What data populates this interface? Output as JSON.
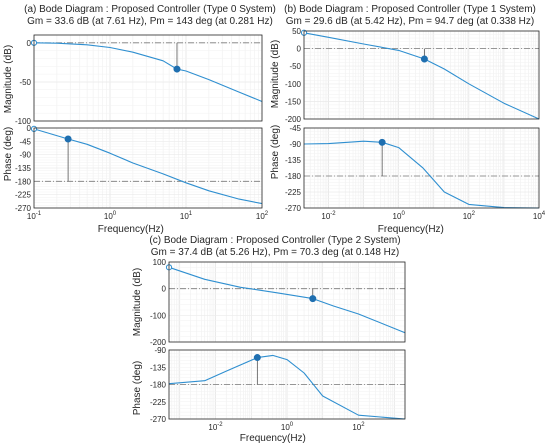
{
  "chart_data": [
    {
      "type": "line",
      "title": "(a) Bode Diagram : Proposed Controller (Type 0 System)",
      "subtitle": "Gm  = 33.6 dB (at 7.61 Hz), Pm = 143 deg (at 0.281 Hz)",
      "xlabel": "Frequency",
      "xunit": "(Hz)",
      "xscale": "log",
      "xlim": [
        0.1,
        100
      ],
      "xticks": [
        "10^-1",
        "10^0",
        "10^1",
        "10^2"
      ],
      "grid": true,
      "magnitude": {
        "ylabel": "Magnitude (dB)",
        "ylim": [
          -100,
          10
        ],
        "yticks": [
          "0",
          "-50",
          "-100"
        ],
        "x": [
          0.1,
          0.2,
          0.5,
          1,
          2,
          5,
          7.61,
          10,
          20,
          50,
          100
        ],
        "y": [
          0,
          -0.5,
          -2.5,
          -6,
          -12,
          -23,
          -33.6,
          -36,
          -47,
          -63,
          -75
        ],
        "marker_x": 7.61,
        "marker_y": -33.6,
        "open_marker_x": 0.1,
        "open_marker_y": 0,
        "ref_y": 0
      },
      "phase": {
        "ylabel": "Phase (deg)",
        "ylim": [
          -270,
          0
        ],
        "yticks": [
          "0",
          "-45",
          "-90",
          "-135",
          "-180",
          "-225",
          "-270"
        ],
        "x": [
          0.1,
          0.281,
          0.5,
          1,
          2,
          5,
          10,
          20,
          50,
          100
        ],
        "y": [
          -3,
          -37,
          -55,
          -85,
          -118,
          -155,
          -185,
          -212,
          -240,
          -255
        ],
        "marker_x": 0.281,
        "marker_y": -37,
        "open_marker_x": 0.1,
        "open_marker_y": -3,
        "ref_y": -180
      }
    },
    {
      "type": "line",
      "title": "(b) Bode Diagram : Proposed Controller (Type 1 System)",
      "subtitle": "Gm = 29.6 dB (at 5.42 Hz), Pm = 94.7 deg (at 0.338 Hz)",
      "xlabel": "Frequency",
      "xunit": "(Hz)",
      "xscale": "log",
      "xlim": [
        0.002,
        10000
      ],
      "xticks": [
        "10^-2",
        "10^0",
        "10^2",
        "10^4"
      ],
      "grid": true,
      "magnitude": {
        "ylabel": "Magnitude (dB)",
        "ylim": [
          -200,
          50
        ],
        "yticks": [
          "50",
          "0",
          "-50",
          "-100",
          "-150",
          "-200"
        ],
        "x": [
          0.002,
          0.01,
          0.1,
          1,
          5.42,
          20,
          100,
          1000,
          10000
        ],
        "y": [
          45,
          32,
          13,
          -5,
          -29.6,
          -58,
          -100,
          -155,
          -200
        ],
        "marker_x": 5.42,
        "marker_y": -29.6,
        "open_marker_x": 0.002,
        "open_marker_y": 45,
        "ref_y": 0
      },
      "phase": {
        "ylabel": "Phase (deg)",
        "ylim": [
          -270,
          -45
        ],
        "yticks": [
          "-45",
          "-90",
          "-135",
          "-180",
          "-225",
          "-270"
        ],
        "x": [
          0.002,
          0.01,
          0.05,
          0.1,
          0.338,
          1,
          5,
          20,
          100,
          1000,
          10000
        ],
        "y": [
          -90,
          -89,
          -84,
          -82,
          -85.3,
          -100,
          -158,
          -225,
          -260,
          -269,
          -270
        ],
        "marker_x": 0.338,
        "marker_y": -85.3,
        "ref_y": -180
      }
    },
    {
      "type": "line",
      "title": "(c) Bode Diagram : Proposed Controller (Type 2 System)",
      "subtitle": "Gm = 37.4 dB (at 5.26 Hz), Pm = 70.3 deg (at 0.148 Hz)",
      "xlabel": "Frequency",
      "xunit": "(Hz)",
      "xscale": "log",
      "xlim": [
        0.0005,
        2000
      ],
      "xticks": [
        "10^-2",
        "10^0",
        "10^2"
      ],
      "grid": true,
      "magnitude": {
        "ylabel": "Magnitude (dB)",
        "ylim": [
          -200,
          100
        ],
        "yticks": [
          "100",
          "0",
          "-100",
          "-200"
        ],
        "x": [
          0.0005,
          0.005,
          0.05,
          0.5,
          5.26,
          20,
          100,
          2000
        ],
        "y": [
          80,
          35,
          5,
          -15,
          -37.4,
          -65,
          -95,
          -165
        ],
        "marker_x": 5.26,
        "marker_y": -37.4,
        "open_marker_x": 0.0005,
        "open_marker_y": 80,
        "ref_y": 0
      },
      "phase": {
        "ylabel": "Phase (deg)",
        "ylim": [
          -270,
          -90
        ],
        "yticks": [
          "-90",
          "-135",
          "-180",
          "-225",
          "-270"
        ],
        "x": [
          0.0005,
          0.005,
          0.02,
          0.148,
          0.4,
          1,
          3,
          10,
          100,
          2000
        ],
        "y": [
          -178,
          -170,
          -145,
          -109.7,
          -104,
          -115,
          -150,
          -210,
          -260,
          -270
        ],
        "marker_x": 0.148,
        "marker_y": -109.7,
        "ref_y": -180
      }
    }
  ]
}
